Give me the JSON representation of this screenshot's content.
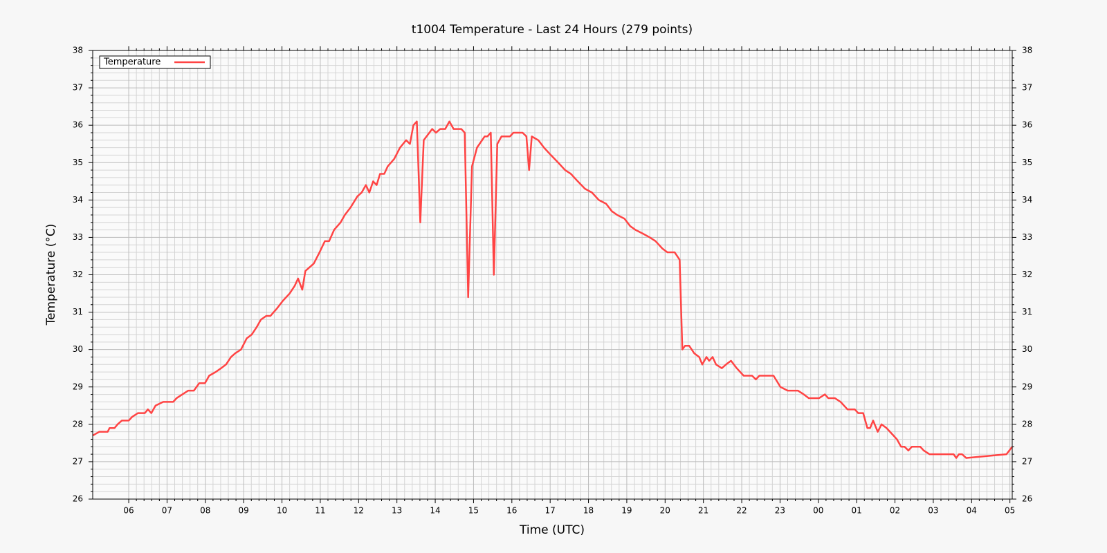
{
  "chart_data": {
    "type": "line",
    "title": "t1004 Temperature - Last 24 Hours (279 points)",
    "xlabel": "Time (UTC)",
    "ylabel": "Temperature (°C)",
    "x": [
      5.06,
      5.23,
      5.45,
      5.5,
      5.63,
      5.71,
      5.82,
      6.0,
      6.09,
      6.24,
      6.42,
      6.5,
      6.59,
      6.7,
      6.9,
      7.16,
      7.25,
      7.4,
      7.55,
      7.7,
      7.84,
      7.99,
      8.1,
      8.27,
      8.41,
      8.54,
      8.67,
      8.78,
      8.93,
      9.08,
      9.21,
      9.34,
      9.45,
      9.59,
      9.7,
      9.87,
      10.02,
      10.2,
      10.33,
      10.42,
      10.53,
      10.61,
      10.83,
      10.98,
      11.12,
      11.23,
      11.36,
      11.53,
      11.64,
      11.79,
      11.97,
      12.08,
      12.19,
      12.28,
      12.38,
      12.47,
      12.56,
      12.67,
      12.76,
      12.93,
      13.08,
      13.24,
      13.34,
      13.43,
      13.52,
      13.61,
      13.7,
      13.92,
      14.02,
      14.13,
      14.26,
      14.37,
      14.48,
      14.68,
      14.77,
      14.86,
      14.96,
      15.09,
      15.29,
      15.36,
      15.45,
      15.53,
      15.62,
      15.73,
      15.95,
      16.04,
      16.28,
      16.38,
      16.45,
      16.52,
      16.69,
      16.84,
      17.02,
      17.21,
      17.39,
      17.54,
      17.72,
      17.91,
      18.09,
      18.27,
      18.46,
      18.61,
      18.75,
      18.94,
      19.09,
      19.23,
      19.42,
      19.6,
      19.75,
      19.93,
      20.06,
      20.25,
      20.38,
      20.45,
      20.52,
      20.63,
      20.76,
      20.89,
      20.97,
      21.08,
      21.15,
      21.24,
      21.33,
      21.48,
      21.59,
      21.72,
      21.87,
      22.05,
      22.27,
      22.37,
      22.46,
      22.83,
      23.01,
      23.2,
      23.47,
      23.62,
      23.75,
      24.02,
      24.17,
      24.26,
      24.43,
      24.58,
      24.76,
      24.95,
      25.04,
      25.17,
      25.28,
      25.35,
      25.43,
      25.55,
      25.65,
      25.78,
      25.87,
      26.05,
      26.16,
      26.25,
      26.35,
      26.44,
      26.66,
      26.75,
      26.9,
      27.53,
      27.6,
      27.67,
      27.75,
      27.86,
      28.91,
      29.06
    ],
    "series": [
      {
        "name": "Temperature",
        "color": "#ff4444",
        "values": [
          27.7,
          27.8,
          27.8,
          27.9,
          27.9,
          28.0,
          28.1,
          28.1,
          28.2,
          28.3,
          28.3,
          28.4,
          28.3,
          28.5,
          28.6,
          28.6,
          28.7,
          28.8,
          28.9,
          28.9,
          29.1,
          29.1,
          29.3,
          29.4,
          29.5,
          29.6,
          29.8,
          29.9,
          30.0,
          30.3,
          30.4,
          30.6,
          30.8,
          30.9,
          30.9,
          31.1,
          31.3,
          31.5,
          31.7,
          31.9,
          31.6,
          32.1,
          32.3,
          32.6,
          32.9,
          32.9,
          33.2,
          33.4,
          33.6,
          33.8,
          34.1,
          34.2,
          34.4,
          34.2,
          34.5,
          34.4,
          34.7,
          34.7,
          34.9,
          35.1,
          35.4,
          35.6,
          35.5,
          36.0,
          36.1,
          33.4,
          35.6,
          35.9,
          35.8,
          35.9,
          35.9,
          36.1,
          35.9,
          35.9,
          35.8,
          31.4,
          34.9,
          35.4,
          35.7,
          35.7,
          35.8,
          32.0,
          35.5,
          35.7,
          35.7,
          35.8,
          35.8,
          35.7,
          34.8,
          35.7,
          35.6,
          35.4,
          35.2,
          35.0,
          34.8,
          34.7,
          34.5,
          34.3,
          34.2,
          34.0,
          33.9,
          33.7,
          33.6,
          33.5,
          33.3,
          33.2,
          33.1,
          33.0,
          32.9,
          32.7,
          32.6,
          32.6,
          32.4,
          30.0,
          30.1,
          30.1,
          29.9,
          29.8,
          29.6,
          29.8,
          29.7,
          29.8,
          29.6,
          29.5,
          29.6,
          29.7,
          29.5,
          29.3,
          29.3,
          29.2,
          29.3,
          29.3,
          29.0,
          28.9,
          28.9,
          28.8,
          28.7,
          28.7,
          28.8,
          28.7,
          28.7,
          28.6,
          28.4,
          28.4,
          28.3,
          28.3,
          27.9,
          27.9,
          28.1,
          27.8,
          28.0,
          27.9,
          27.8,
          27.6,
          27.4,
          27.4,
          27.3,
          27.4,
          27.4,
          27.3,
          27.2,
          27.2,
          27.1,
          27.2,
          27.2,
          27.1,
          27.2,
          27.4
        ]
      }
    ],
    "xlim": [
      5.06,
      29.06
    ],
    "xticks": [
      {
        "value": 6,
        "label": "06"
      },
      {
        "value": 7,
        "label": "07"
      },
      {
        "value": 8,
        "label": "08"
      },
      {
        "value": 9,
        "label": "09"
      },
      10,
      11,
      12,
      13,
      14,
      15,
      16,
      17,
      18,
      19,
      20,
      21,
      22,
      23,
      {
        "value": 24,
        "label": "00"
      },
      {
        "value": 25,
        "label": "01"
      },
      {
        "value": 26,
        "label": "02"
      },
      {
        "value": 27,
        "label": "03"
      },
      {
        "value": 28,
        "label": "04"
      },
      {
        "value": 29,
        "label": "05"
      }
    ],
    "ylim": [
      26,
      38
    ],
    "yticks": [
      26,
      27,
      28,
      29,
      30,
      31,
      32,
      33,
      34,
      35,
      36,
      37,
      38
    ],
    "grid": true,
    "legend": "upper left"
  }
}
